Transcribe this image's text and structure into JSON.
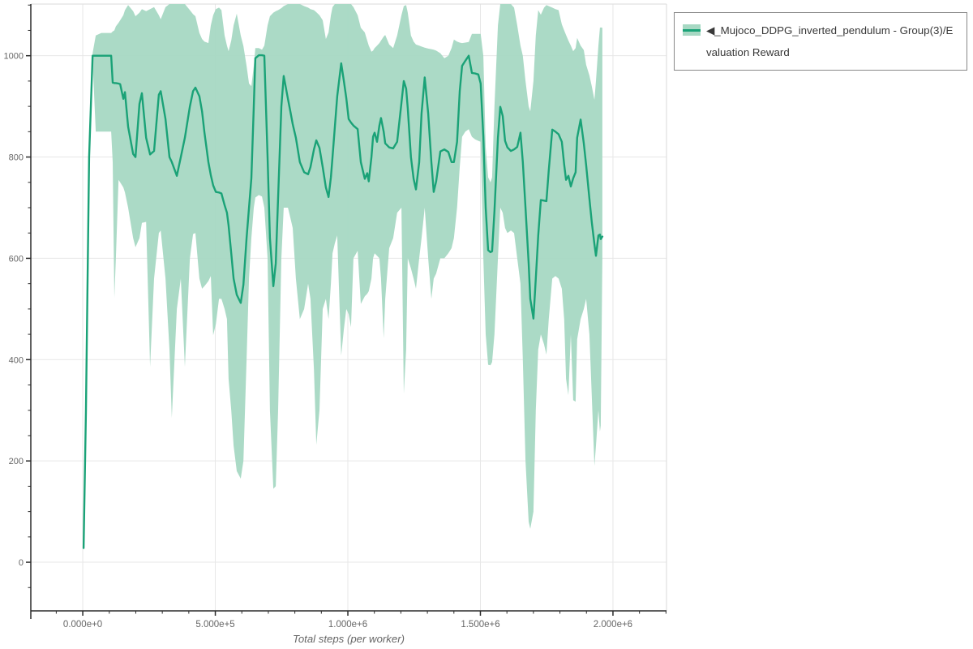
{
  "page": {
    "background": "#ffffff"
  },
  "legend": {
    "items": [
      {
        "label": "◀_Mujoco_DDPG_inverted_pendulum - Group(3)/Evaluation Reward",
        "swatch_fill": "#a7d8c3",
        "swatch_line_color": "#1aa277"
      }
    ]
  },
  "chart_data": {
    "type": "line",
    "title": "",
    "xlabel": "Total steps (per worker)",
    "ylabel": "",
    "legend_position": "top-right-outside",
    "grid": true,
    "xlim": [
      -196000,
      2202000
    ],
    "ylim": [
      -96,
      1102
    ],
    "x_tick_values": [
      0,
      500000,
      1000000,
      1500000,
      2000000
    ],
    "x_tick_labels": [
      "0.000e+0",
      "5.000e+5",
      "1.000e+6",
      "1.500e+6",
      "2.000e+6"
    ],
    "x_minor_step": 100000,
    "y_tick_values": [
      0,
      200,
      400,
      600,
      800,
      1000
    ],
    "y_tick_labels": [
      "0",
      "200",
      "400",
      "600",
      "800",
      "1000"
    ],
    "y_minor_step": 50,
    "colors": {
      "line": "#1aa277",
      "band": "#a7d8c3",
      "grid": "#e7e7e7",
      "border": "#e0e0e0",
      "axis": "#2a2a2a",
      "tick_label": "#666666",
      "axis_title": "#666666"
    },
    "series": [
      {
        "name": "◀_Mujoco_DDPG_inverted_pendulum - Group(3)/Evaluation Reward",
        "note": "points are [steps, mean, band_lower, band_upper]; band_upper 1102 = clipped at plot top",
        "points": [
          [
            3000,
            28,
            28,
            30
          ],
          [
            12000,
            300,
            295,
            310
          ],
          [
            24000,
            800,
            795,
            810
          ],
          [
            37000,
            1000,
            990,
            1005
          ],
          [
            49000,
            1000,
            850,
            1040
          ],
          [
            70000,
            1000,
            850,
            1045
          ],
          [
            92000,
            1000,
            850,
            1045
          ],
          [
            107000,
            1000,
            850,
            1045
          ],
          [
            113000,
            947,
            790,
            1048
          ],
          [
            119000,
            946,
            522,
            1050
          ],
          [
            125000,
            946,
            600,
            1058
          ],
          [
            135000,
            945,
            755,
            1065
          ],
          [
            141000,
            944,
            750,
            1070
          ],
          [
            153000,
            915,
            740,
            1080
          ],
          [
            159000,
            928,
            730,
            1090
          ],
          [
            171000,
            860,
            700,
            1100
          ],
          [
            190000,
            806,
            640,
            1088
          ],
          [
            199000,
            800,
            622,
            1078
          ],
          [
            214000,
            905,
            640,
            1085
          ],
          [
            223000,
            926,
            670,
            1092
          ],
          [
            239000,
            838,
            672,
            1088
          ],
          [
            254000,
            805,
            386,
            1092
          ],
          [
            269000,
            812,
            560,
            1096
          ],
          [
            287000,
            923,
            650,
            1080
          ],
          [
            294000,
            930,
            655,
            1072
          ],
          [
            312000,
            875,
            560,
            1096
          ],
          [
            327000,
            800,
            420,
            1102
          ],
          [
            336000,
            790,
            285,
            1102
          ],
          [
            355000,
            763,
            500,
            1102
          ],
          [
            370000,
            800,
            560,
            1102
          ],
          [
            385000,
            838,
            386,
            1102
          ],
          [
            404000,
            900,
            600,
            1090
          ],
          [
            416000,
            930,
            648,
            1082
          ],
          [
            425000,
            937,
            650,
            1078
          ],
          [
            440000,
            920,
            560,
            1045
          ],
          [
            450000,
            890,
            540,
            1033
          ],
          [
            459000,
            849,
            545,
            1028
          ],
          [
            474000,
            790,
            555,
            1025
          ],
          [
            483000,
            764,
            565,
            1060
          ],
          [
            492000,
            744,
            448,
            1080
          ],
          [
            502000,
            731,
            470,
            1092
          ],
          [
            514000,
            730,
            520,
            1095
          ],
          [
            523000,
            728,
            520,
            1090
          ],
          [
            535000,
            705,
            500,
            1040
          ],
          [
            544000,
            690,
            480,
            1020
          ],
          [
            550000,
            665,
            362,
            1009
          ],
          [
            560000,
            610,
            300,
            1030
          ],
          [
            569000,
            560,
            230,
            1060
          ],
          [
            581000,
            528,
            180,
            1083
          ],
          [
            596000,
            512,
            165,
            1040
          ],
          [
            606000,
            548,
            200,
            1019
          ],
          [
            618000,
            640,
            400,
            980
          ],
          [
            627000,
            700,
            560,
            945
          ],
          [
            636000,
            758,
            640,
            940
          ],
          [
            645000,
            900,
            700,
            980
          ],
          [
            651000,
            995,
            720,
            1015
          ],
          [
            664000,
            1001,
            725,
            1015
          ],
          [
            676000,
            1001,
            722,
            1012
          ],
          [
            685000,
            1000,
            700,
            1020
          ],
          [
            697000,
            800,
            600,
            1060
          ],
          [
            706000,
            640,
            300,
            1078
          ],
          [
            719000,
            545,
            145,
            1085
          ],
          [
            728000,
            590,
            150,
            1088
          ],
          [
            737000,
            720,
            300,
            1090
          ],
          [
            749000,
            900,
            600,
            1094
          ],
          [
            758000,
            960,
            700,
            1098
          ],
          [
            774000,
            915,
            700,
            1102
          ],
          [
            783000,
            890,
            680,
            1102
          ],
          [
            792000,
            865,
            660,
            1102
          ],
          [
            804000,
            838,
            560,
            1102
          ],
          [
            819000,
            790,
            480,
            1102
          ],
          [
            835000,
            770,
            500,
            1098
          ],
          [
            850000,
            766,
            550,
            1095
          ],
          [
            859000,
            780,
            520,
            1092
          ],
          [
            872000,
            815,
            380,
            1090
          ],
          [
            881000,
            833,
            232,
            1086
          ],
          [
            893000,
            818,
            300,
            1080
          ],
          [
            905000,
            780,
            500,
            1070
          ],
          [
            917000,
            740,
            520,
            1033
          ],
          [
            927000,
            721,
            480,
            1046
          ],
          [
            936000,
            760,
            550,
            1080
          ],
          [
            942000,
            800,
            610,
            1096
          ],
          [
            951000,
            860,
            630,
            1102
          ],
          [
            960000,
            920,
            645,
            1102
          ],
          [
            975000,
            985,
            408,
            1102
          ],
          [
            985000,
            950,
            460,
            1102
          ],
          [
            994000,
            916,
            500,
            1102
          ],
          [
            1003000,
            875,
            490,
            1102
          ],
          [
            1012000,
            868,
            464,
            1102
          ],
          [
            1021000,
            862,
            600,
            1096
          ],
          [
            1037000,
            855,
            615,
            1080
          ],
          [
            1049000,
            790,
            510,
            1055
          ],
          [
            1064000,
            757,
            525,
            1046
          ],
          [
            1073000,
            768,
            530,
            1030
          ],
          [
            1079000,
            752,
            535,
            1020
          ],
          [
            1089000,
            800,
            560,
            1008
          ],
          [
            1095000,
            840,
            600,
            1010
          ],
          [
            1101000,
            848,
            610,
            1015
          ],
          [
            1110000,
            830,
            605,
            1020
          ],
          [
            1119000,
            862,
            600,
            1025
          ],
          [
            1125000,
            877,
            560,
            1030
          ],
          [
            1135000,
            850,
            442,
            1038
          ],
          [
            1141000,
            827,
            520,
            1041
          ],
          [
            1156000,
            819,
            620,
            1022
          ],
          [
            1171000,
            817,
            640,
            1015
          ],
          [
            1186000,
            830,
            690,
            1040
          ],
          [
            1202000,
            907,
            700,
            1080
          ],
          [
            1211000,
            950,
            333,
            1098
          ],
          [
            1220000,
            935,
            420,
            1100
          ],
          [
            1226000,
            896,
            600,
            1085
          ],
          [
            1238000,
            800,
            580,
            1040
          ],
          [
            1248000,
            757,
            560,
            1028
          ],
          [
            1257000,
            736,
            540,
            1022
          ],
          [
            1269000,
            790,
            600,
            1020
          ],
          [
            1278000,
            886,
            640,
            1018
          ],
          [
            1290000,
            957,
            700,
            1016
          ],
          [
            1303000,
            886,
            600,
            1014
          ],
          [
            1315000,
            790,
            520,
            1013
          ],
          [
            1324000,
            731,
            560,
            1012
          ],
          [
            1333000,
            752,
            570,
            1010
          ],
          [
            1349000,
            811,
            600,
            1005
          ],
          [
            1364000,
            815,
            600,
            995
          ],
          [
            1379000,
            810,
            610,
            1000
          ],
          [
            1391000,
            790,
            620,
            1015
          ],
          [
            1400000,
            790,
            640,
            1032
          ],
          [
            1412000,
            830,
            700,
            1028
          ],
          [
            1422000,
            930,
            780,
            1026
          ],
          [
            1431000,
            980,
            840,
            1025
          ],
          [
            1443000,
            990,
            850,
            1026
          ],
          [
            1456000,
            1000,
            855,
            1027
          ],
          [
            1468000,
            966,
            840,
            1043
          ],
          [
            1480000,
            965,
            835,
            1043
          ],
          [
            1492000,
            963,
            832,
            1043
          ],
          [
            1501000,
            945,
            830,
            1043
          ],
          [
            1511000,
            840,
            600,
            1000
          ],
          [
            1520000,
            700,
            450,
            820
          ],
          [
            1529000,
            616,
            390,
            760
          ],
          [
            1538000,
            612,
            389,
            750
          ],
          [
            1544000,
            614,
            395,
            760
          ],
          [
            1553000,
            693,
            450,
            900
          ],
          [
            1566000,
            838,
            600,
            1060
          ],
          [
            1575000,
            899,
            700,
            1102
          ],
          [
            1584000,
            881,
            690,
            1102
          ],
          [
            1593000,
            832,
            660,
            1102
          ],
          [
            1602000,
            819,
            650,
            1102
          ],
          [
            1615000,
            812,
            655,
            1102
          ],
          [
            1627000,
            815,
            650,
            1095
          ],
          [
            1639000,
            820,
            600,
            1060
          ],
          [
            1651000,
            848,
            550,
            1020
          ],
          [
            1660000,
            790,
            400,
            1000
          ],
          [
            1670000,
            700,
            200,
            950
          ],
          [
            1682000,
            590,
            80,
            900
          ],
          [
            1688000,
            520,
            66,
            890
          ],
          [
            1700000,
            481,
            100,
            950
          ],
          [
            1709000,
            560,
            300,
            1040
          ],
          [
            1718000,
            645,
            420,
            1090
          ],
          [
            1728000,
            715,
            450,
            1081
          ],
          [
            1740000,
            714,
            430,
            1095
          ],
          [
            1749000,
            713,
            410,
            1100
          ],
          [
            1758000,
            774,
            480,
            1098
          ],
          [
            1771000,
            854,
            560,
            1095
          ],
          [
            1783000,
            850,
            565,
            1092
          ],
          [
            1795000,
            845,
            560,
            1090
          ],
          [
            1807000,
            830,
            540,
            1062
          ],
          [
            1816000,
            785,
            480,
            1050
          ],
          [
            1823000,
            755,
            362,
            1041
          ],
          [
            1832000,
            763,
            330,
            1030
          ],
          [
            1841000,
            742,
            450,
            1020
          ],
          [
            1850000,
            758,
            320,
            1009
          ],
          [
            1859000,
            770,
            317,
            1015
          ],
          [
            1865000,
            838,
            440,
            1035
          ],
          [
            1878000,
            874,
            480,
            1020
          ],
          [
            1890000,
            827,
            500,
            1011
          ],
          [
            1899000,
            784,
            520,
            982
          ],
          [
            1911000,
            718,
            450,
            961
          ],
          [
            1920000,
            672,
            330,
            940
          ],
          [
            1930000,
            628,
            190,
            913
          ],
          [
            1936000,
            605,
            230,
            950
          ],
          [
            1945000,
            645,
            300,
            1020
          ],
          [
            1951000,
            647,
            258,
            1055
          ],
          [
            1954000,
            638,
            270,
            1056
          ],
          [
            1960000,
            643,
            600,
            1055
          ]
        ]
      }
    ]
  }
}
